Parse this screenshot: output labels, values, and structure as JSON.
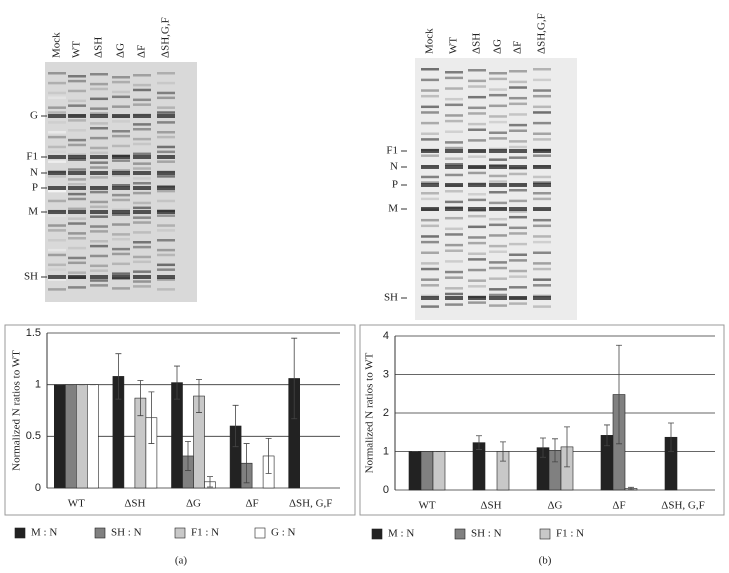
{
  "chart_data": [
    {
      "type": "bar",
      "ylabel": "Normalized N ratios to WT",
      "categories": [
        "WT",
        "ΔSH",
        "ΔG",
        "ΔF",
        "ΔSH, G,F"
      ],
      "ylim": [
        0,
        1.5
      ],
      "yticks": [
        0,
        0.5,
        1,
        1.5
      ],
      "grid": true,
      "panel_label": "(a)",
      "series": [
        {
          "name": "M : N",
          "color": "#222222",
          "values": [
            1,
            1.08,
            1.02,
            0.6,
            1.06
          ],
          "errors": [
            0,
            0.22,
            0.16,
            0.2,
            0.39
          ]
        },
        {
          "name": "SH : N",
          "color": "#808080",
          "values": [
            1,
            null,
            0.31,
            0.24,
            null
          ],
          "errors": [
            0,
            null,
            0.14,
            0.19,
            null
          ]
        },
        {
          "name": "F1 : N",
          "color": "#c8c8c8",
          "values": [
            1,
            0.87,
            0.89,
            null,
            null
          ],
          "errors": [
            0,
            0.17,
            0.16,
            null,
            null
          ]
        },
        {
          "name": "G : N",
          "color": "#ffffff",
          "values": [
            1,
            0.68,
            0.06,
            0.31,
            null
          ],
          "errors": [
            0,
            0.25,
            0.05,
            0.17,
            null
          ]
        }
      ]
    },
    {
      "type": "bar",
      "ylabel": "Normalized N ratios to WT",
      "categories": [
        "WT",
        "ΔSH",
        "ΔG",
        "ΔF",
        "ΔSH, G,F"
      ],
      "ylim": [
        0,
        4
      ],
      "yticks": [
        0,
        1,
        2,
        3,
        4
      ],
      "grid": true,
      "panel_label": "(b)",
      "series": [
        {
          "name": "M : N",
          "color": "#222222",
          "values": [
            1,
            1.23,
            1.1,
            1.42,
            1.37
          ],
          "errors": [
            0,
            0.18,
            0.25,
            0.27,
            0.37
          ]
        },
        {
          "name": "SH : N",
          "color": "#808080",
          "values": [
            1,
            null,
            1.03,
            2.48,
            null
          ],
          "errors": [
            0,
            null,
            0.3,
            1.28,
            null
          ]
        },
        {
          "name": "F1 : N",
          "color": "#c8c8c8",
          "values": [
            1,
            1.0,
            1.12,
            0.04,
            null
          ],
          "errors": [
            0,
            0.25,
            0.52,
            0.03,
            null
          ]
        }
      ]
    }
  ],
  "gels": [
    {
      "lanes": [
        "Mock",
        "WT",
        "ΔSH",
        "ΔG",
        "ΔF",
        "ΔSH,G,F"
      ],
      "markers": [
        "G",
        "F1",
        "N",
        "P",
        "M",
        "SH"
      ]
    },
    {
      "lanes": [
        "Mock",
        "WT",
        "ΔSH",
        "ΔG",
        "ΔF",
        "ΔSH,G,F"
      ],
      "markers": [
        "F1",
        "N",
        "P",
        "M",
        "SH"
      ]
    }
  ]
}
